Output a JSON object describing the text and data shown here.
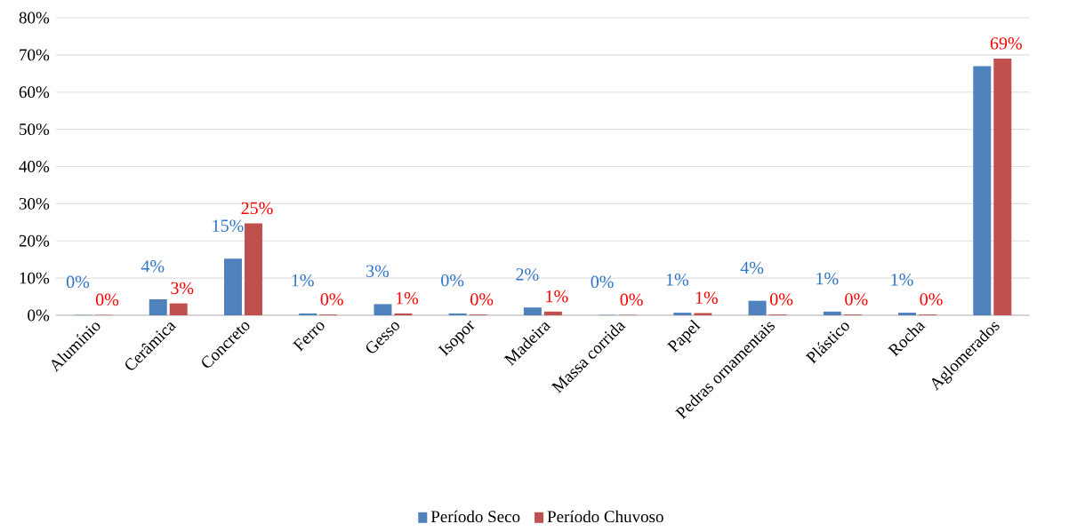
{
  "chart_data": {
    "type": "bar",
    "categories": [
      "Alumínio",
      "Cerâmica",
      "Concreto",
      "Ferro",
      "Gesso",
      "Isopor",
      "Madeira",
      "Massa corrida",
      "Papel",
      "Pedras ornamentais",
      "Plástico",
      "Rocha",
      "Aglomerados"
    ],
    "series": [
      {
        "name": "Período Seco",
        "color": "#4f81bd",
        "values": [
          0.1,
          4.3,
          15.2,
          0.5,
          3.0,
          0.5,
          2.1,
          0.1,
          0.7,
          3.9,
          1.0,
          0.7,
          67
        ],
        "value_labels": [
          "0%",
          "4%",
          "15%",
          "1%",
          "3%",
          "0%",
          "2%",
          "0%",
          "1%",
          "4%",
          "1%",
          "1%",
          null
        ]
      },
      {
        "name": "Período Chuvoso",
        "color": "#c0504d",
        "values": [
          0.1,
          3.2,
          24.7,
          0.2,
          0.5,
          0.2,
          1.0,
          0.1,
          0.6,
          0.2,
          0.2,
          0.2,
          69
        ],
        "value_labels": [
          "0%",
          "3%",
          "25%",
          "0%",
          "1%",
          "0%",
          "1%",
          "0%",
          "1%",
          "0%",
          "0%",
          "0%",
          "69%"
        ]
      }
    ],
    "ylim": [
      0,
      80
    ],
    "yticks": [
      {
        "value": 0,
        "label": "0%"
      },
      {
        "value": 10,
        "label": "10%"
      },
      {
        "value": 20,
        "label": "20%"
      },
      {
        "value": 30,
        "label": "30%"
      },
      {
        "value": 40,
        "label": "40%"
      },
      {
        "value": 50,
        "label": "50%"
      },
      {
        "value": 60,
        "label": "60%"
      },
      {
        "value": 70,
        "label": "70%"
      },
      {
        "value": 80,
        "label": "80%"
      }
    ],
    "grid": "y",
    "legend": "bottom"
  }
}
